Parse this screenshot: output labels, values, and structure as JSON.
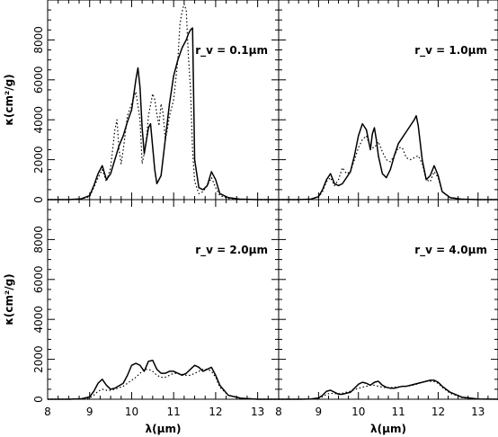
{
  "chart_data": [
    {
      "type": "line",
      "panel": "top-left",
      "annotation": "r_v = 0.1μm",
      "ylabel": "κ(cm²/g)",
      "xlabel": "",
      "xlim": [
        8,
        13.5
      ],
      "ylim": [
        0,
        10000
      ],
      "xticks": [
        "8",
        "9",
        "10",
        "11",
        "12",
        "13"
      ],
      "yticks": [
        "0",
        "2000",
        "4000",
        "6000",
        "8000"
      ],
      "show_x_tick_labels": false,
      "show_y_tick_labels": true,
      "series": [
        {
          "style": "solid",
          "x": [
            8.0,
            8.5,
            8.8,
            9.0,
            9.1,
            9.2,
            9.3,
            9.4,
            9.5,
            9.6,
            9.7,
            9.8,
            9.9,
            10.0,
            10.1,
            10.15,
            10.2,
            10.25,
            10.3,
            10.4,
            10.45,
            10.55,
            10.6,
            10.7,
            10.8,
            10.9,
            11.0,
            11.1,
            11.2,
            11.3,
            11.35,
            11.4,
            11.45,
            11.5,
            11.6,
            11.7,
            11.8,
            11.9,
            12.0,
            12.1,
            12.3,
            12.6,
            13.0,
            13.5
          ],
          "y": [
            0,
            0,
            40,
            200,
            700,
            1300,
            1700,
            1000,
            1300,
            2000,
            2700,
            3200,
            3900,
            4500,
            6000,
            6600,
            5600,
            3600,
            2300,
            3600,
            3800,
            1500,
            800,
            1200,
            3000,
            4800,
            6200,
            7000,
            7600,
            8000,
            8300,
            8500,
            8600,
            2000,
            600,
            500,
            700,
            1400,
            1000,
            300,
            100,
            20,
            0,
            0
          ]
        },
        {
          "style": "dotted",
          "x": [
            8.0,
            8.5,
            8.8,
            9.0,
            9.1,
            9.2,
            9.3,
            9.4,
            9.5,
            9.6,
            9.65,
            9.7,
            9.75,
            9.8,
            9.9,
            10.0,
            10.1,
            10.2,
            10.25,
            10.3,
            10.35,
            10.4,
            10.5,
            10.55,
            10.6,
            10.65,
            10.7,
            10.75,
            10.8,
            10.85,
            10.9,
            11.0,
            11.05,
            11.1,
            11.15,
            11.2,
            11.25,
            11.3,
            11.35,
            11.4,
            11.45,
            11.5,
            11.6,
            11.7,
            11.8,
            11.9,
            12.0,
            12.1,
            12.3,
            12.6,
            13.0,
            13.5
          ],
          "y": [
            0,
            0,
            30,
            150,
            600,
            1100,
            1500,
            900,
            1600,
            3500,
            4000,
            2500,
            1800,
            2500,
            4200,
            4800,
            5400,
            4000,
            1800,
            2300,
            3000,
            4200,
            5300,
            5000,
            4300,
            3700,
            4800,
            4300,
            3000,
            3500,
            4200,
            5000,
            6000,
            7000,
            8800,
            9400,
            9800,
            9500,
            7200,
            5600,
            2500,
            900,
            300,
            400,
            700,
            1100,
            600,
            200,
            60,
            10,
            0,
            0
          ]
        }
      ]
    },
    {
      "type": "line",
      "panel": "top-right",
      "annotation": "r_v = 1.0μm",
      "ylabel": "",
      "xlabel": "",
      "xlim": [
        8,
        13.5
      ],
      "ylim": [
        0,
        10000
      ],
      "xticks": [
        "8",
        "9",
        "10",
        "11",
        "12",
        "13"
      ],
      "yticks": [
        "0",
        "2000",
        "4000",
        "6000",
        "8000"
      ],
      "show_x_tick_labels": false,
      "show_y_tick_labels": false,
      "series": [
        {
          "style": "solid",
          "x": [
            8.0,
            8.5,
            8.8,
            9.0,
            9.1,
            9.2,
            9.3,
            9.4,
            9.5,
            9.6,
            9.8,
            9.9,
            10.0,
            10.1,
            10.2,
            10.3,
            10.35,
            10.4,
            10.45,
            10.5,
            10.6,
            10.7,
            10.8,
            10.9,
            11.0,
            11.1,
            11.2,
            11.3,
            11.4,
            11.45,
            11.5,
            11.6,
            11.7,
            11.8,
            11.9,
            12.0,
            12.1,
            12.3,
            12.6,
            13.0,
            13.5
          ],
          "y": [
            0,
            0,
            20,
            150,
            500,
            1000,
            1300,
            800,
            700,
            800,
            1400,
            2200,
            3200,
            3800,
            3500,
            2500,
            3300,
            3600,
            3000,
            2200,
            1300,
            1100,
            1500,
            2200,
            2800,
            3100,
            3400,
            3700,
            4000,
            4200,
            3700,
            2000,
            1000,
            1200,
            1700,
            1200,
            400,
            100,
            20,
            0,
            0
          ]
        },
        {
          "style": "dotted",
          "x": [
            8.0,
            8.5,
            8.8,
            9.0,
            9.1,
            9.2,
            9.3,
            9.4,
            9.5,
            9.6,
            9.7,
            9.8,
            9.9,
            10.0,
            10.1,
            10.2,
            10.3,
            10.4,
            10.5,
            10.6,
            10.7,
            10.8,
            10.9,
            11.0,
            11.1,
            11.2,
            11.3,
            11.4,
            11.5,
            11.6,
            11.7,
            11.8,
            11.9,
            12.0,
            12.1,
            12.3,
            12.6,
            13.0,
            13.5
          ],
          "y": [
            0,
            0,
            20,
            120,
            400,
            900,
            1100,
            700,
            1000,
            1600,
            1300,
            1400,
            2000,
            2600,
            3000,
            3200,
            2600,
            2600,
            2900,
            2400,
            2000,
            1900,
            2200,
            2600,
            2600,
            2100,
            2000,
            2100,
            2200,
            1800,
            1000,
            900,
            1400,
            1100,
            400,
            100,
            20,
            0,
            0
          ]
        }
      ]
    },
    {
      "type": "line",
      "panel": "bottom-left",
      "annotation": "r_v = 2.0μm",
      "ylabel": "κ(cm²/g)",
      "xlabel": "λ(μm)",
      "xlim": [
        8,
        13.5
      ],
      "ylim": [
        0,
        10000
      ],
      "xticks": [
        "8",
        "9",
        "10",
        "11",
        "12",
        "13"
      ],
      "yticks": [
        "0",
        "2000",
        "4000",
        "6000",
        "8000"
      ],
      "show_x_tick_labels": true,
      "show_y_tick_labels": true,
      "series": [
        {
          "style": "solid",
          "x": [
            8.0,
            8.5,
            8.8,
            9.0,
            9.1,
            9.2,
            9.3,
            9.4,
            9.5,
            9.6,
            9.8,
            9.9,
            10.0,
            10.1,
            10.2,
            10.3,
            10.4,
            10.5,
            10.6,
            10.7,
            10.8,
            10.9,
            11.0,
            11.1,
            11.2,
            11.3,
            11.4,
            11.5,
            11.6,
            11.7,
            11.8,
            11.9,
            12.0,
            12.1,
            12.3,
            12.6,
            13.0,
            13.5
          ],
          "y": [
            0,
            0,
            20,
            120,
            400,
            800,
            1000,
            700,
            500,
            550,
            800,
            1200,
            1700,
            1800,
            1700,
            1400,
            1900,
            1950,
            1500,
            1300,
            1300,
            1400,
            1400,
            1300,
            1200,
            1300,
            1500,
            1700,
            1600,
            1400,
            1500,
            1600,
            1200,
            700,
            200,
            50,
            0,
            0
          ]
        },
        {
          "style": "dotted",
          "x": [
            8.0,
            8.5,
            8.8,
            9.0,
            9.1,
            9.2,
            9.3,
            9.4,
            9.5,
            9.6,
            9.8,
            9.9,
            10.0,
            10.1,
            10.2,
            10.3,
            10.4,
            10.5,
            10.6,
            10.7,
            10.8,
            10.9,
            11.0,
            11.1,
            11.2,
            11.3,
            11.4,
            11.5,
            11.6,
            11.7,
            11.8,
            11.9,
            12.0,
            12.1,
            12.3,
            12.6,
            13.0,
            13.5
          ],
          "y": [
            0,
            0,
            10,
            60,
            200,
            400,
            500,
            450,
            450,
            500,
            650,
            800,
            950,
            1100,
            1300,
            1500,
            1500,
            1400,
            1200,
            1100,
            1100,
            1200,
            1300,
            1300,
            1250,
            1200,
            1200,
            1300,
            1400,
            1500,
            1500,
            1400,
            1100,
            600,
            200,
            50,
            0,
            0
          ]
        }
      ]
    },
    {
      "type": "line",
      "panel": "bottom-right",
      "annotation": "r_v = 4.0μm",
      "ylabel": "",
      "xlabel": "λ(μm)",
      "xlim": [
        8,
        13.5
      ],
      "ylim": [
        0,
        10000
      ],
      "xticks": [
        "8",
        "9",
        "10",
        "11",
        "12",
        "13"
      ],
      "yticks": [
        "0",
        "2000",
        "4000",
        "6000",
        "8000"
      ],
      "show_x_tick_labels": true,
      "show_y_tick_labels": false,
      "series": [
        {
          "style": "solid",
          "x": [
            8.0,
            8.5,
            8.8,
            9.0,
            9.1,
            9.2,
            9.3,
            9.4,
            9.5,
            9.6,
            9.8,
            9.9,
            10.0,
            10.1,
            10.2,
            10.3,
            10.4,
            10.5,
            10.6,
            10.7,
            10.8,
            10.9,
            11.0,
            11.1,
            11.2,
            11.3,
            11.4,
            11.5,
            11.6,
            11.7,
            11.8,
            11.9,
            12.0,
            12.1,
            12.3,
            12.6,
            13.0,
            13.5
          ],
          "y": [
            0,
            0,
            10,
            60,
            200,
            400,
            450,
            350,
            250,
            250,
            350,
            550,
            750,
            850,
            800,
            700,
            850,
            900,
            700,
            600,
            550,
            550,
            600,
            650,
            650,
            700,
            750,
            800,
            850,
            900,
            950,
            950,
            850,
            650,
            350,
            100,
            10,
            0
          ]
        },
        {
          "style": "dotted",
          "x": [
            8.0,
            8.5,
            8.8,
            9.0,
            9.1,
            9.2,
            9.3,
            9.4,
            9.5,
            9.6,
            9.8,
            9.9,
            10.0,
            10.1,
            10.2,
            10.3,
            10.4,
            10.5,
            10.6,
            10.7,
            10.8,
            10.9,
            11.0,
            11.1,
            11.2,
            11.3,
            11.4,
            11.5,
            11.6,
            11.7,
            11.8,
            11.9,
            12.0,
            12.1,
            12.3,
            12.6,
            13.0,
            13.5
          ],
          "y": [
            0,
            0,
            5,
            40,
            120,
            250,
            300,
            280,
            280,
            300,
            400,
            480,
            550,
            600,
            650,
            700,
            700,
            650,
            600,
            580,
            580,
            600,
            620,
            640,
            650,
            680,
            720,
            780,
            850,
            900,
            900,
            880,
            800,
            600,
            300,
            80,
            10,
            0
          ]
        }
      ]
    }
  ]
}
